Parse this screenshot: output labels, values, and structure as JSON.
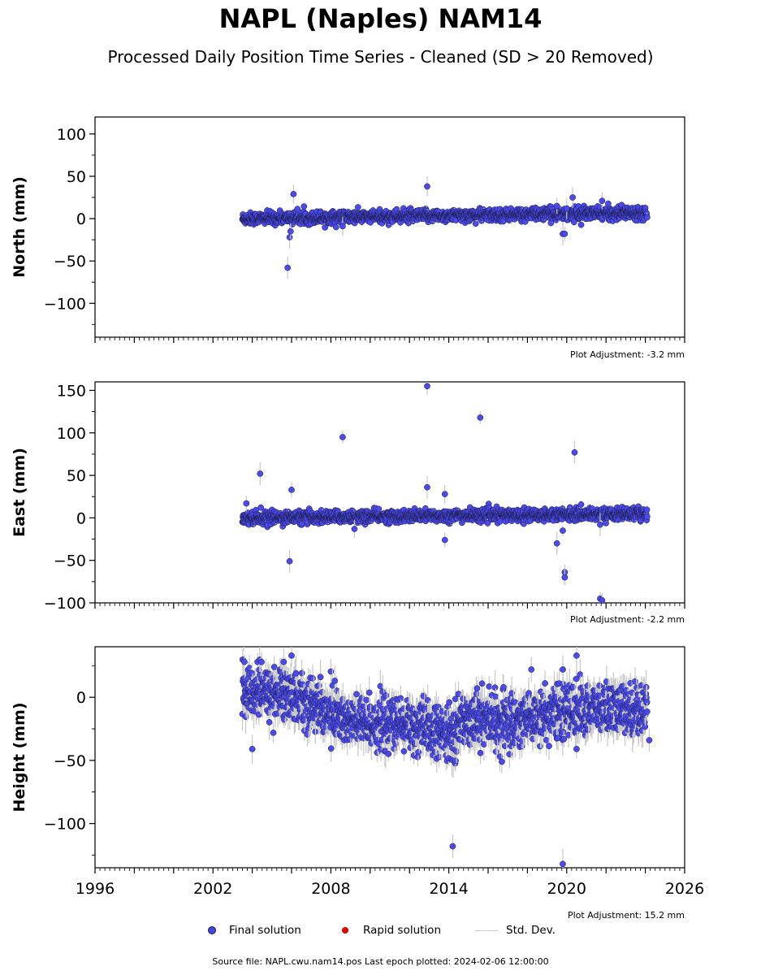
{
  "header": {
    "title": "NAPL (Naples) NAM14",
    "subtitle": "Processed Daily Position Time Series - Cleaned (SD > 20 Removed)"
  },
  "legend": {
    "final": "Final solution",
    "rapid": "Rapid solution",
    "std": "Std. Dev."
  },
  "footer": {
    "source": "Source file: NAPL.cwu.nam14.pos  Last epoch plotted: 2024-02-06 12:00:00"
  },
  "colors": {
    "final": "#4a4aee",
    "rapid": "#dd0000",
    "std": "#c8c8c8"
  },
  "chart_data": [
    {
      "type": "scatter",
      "ylabel": "North (mm)",
      "note": "Plot Adjustment: -3.2 mm",
      "xlim": [
        1996,
        2026
      ],
      "ylim": [
        -140,
        120
      ],
      "yticks": [
        -100,
        -50,
        0,
        50,
        100
      ],
      "trend": [
        [
          2003.5,
          0
        ],
        [
          2024.1,
          7
        ]
      ],
      "noise": 3.5,
      "series": [
        {
          "values": [
            [
              2005.8,
              -58
            ],
            [
              2005.9,
              -22
            ],
            [
              2005.95,
              -15
            ],
            [
              2006.1,
              29
            ],
            [
              2008.6,
              -9
            ],
            [
              2012.9,
              38
            ],
            [
              2019.8,
              -18
            ],
            [
              2019.9,
              -18
            ],
            [
              2020.3,
              25
            ],
            [
              2021.8,
              21
            ],
            [
              2019.5,
              15
            ],
            [
              2020.0,
              12
            ]
          ]
        }
      ]
    },
    {
      "type": "scatter",
      "ylabel": "East (mm)",
      "note": "Plot Adjustment: -2.2 mm",
      "xlim": [
        1996,
        2026
      ],
      "ylim": [
        -100,
        160
      ],
      "yticks": [
        -100,
        -50,
        0,
        50,
        100,
        150
      ],
      "trend": [
        [
          2003.5,
          0
        ],
        [
          2024.1,
          5
        ]
      ],
      "noise": 3.5,
      "series": [
        {
          "values": [
            [
              2003.7,
              17
            ],
            [
              2004.4,
              52
            ],
            [
              2005.9,
              -51
            ],
            [
              2006.0,
              33
            ],
            [
              2008.6,
              95
            ],
            [
              2009.2,
              -13
            ],
            [
              2012.9,
              155
            ],
            [
              2012.9,
              36
            ],
            [
              2013.8,
              28
            ],
            [
              2013.8,
              -26
            ],
            [
              2015.6,
              118
            ],
            [
              2019.5,
              -30
            ],
            [
              2019.8,
              -15
            ],
            [
              2019.9,
              -64
            ],
            [
              2019.9,
              -70
            ],
            [
              2020.4,
              77
            ],
            [
              2021.7,
              -95
            ],
            [
              2021.8,
              -97
            ],
            [
              2021.7,
              -8
            ]
          ]
        }
      ]
    },
    {
      "type": "scatter",
      "ylabel": "Height (mm)",
      "note": "Plot Adjustment: 15.2 mm",
      "xlim": [
        1996,
        2026
      ],
      "ylim": [
        -135,
        40
      ],
      "yticks": [
        -100,
        -50,
        0
      ],
      "xticks": [
        1996,
        2002,
        2008,
        2014,
        2020,
        2026
      ],
      "trend": [
        [
          2003.5,
          5
        ],
        [
          2006.0,
          2
        ],
        [
          2009.0,
          -20
        ],
        [
          2012.0,
          -22
        ],
        [
          2014.0,
          -30
        ],
        [
          2015.0,
          -15
        ],
        [
          2017.0,
          -20
        ],
        [
          2020.0,
          -10
        ],
        [
          2024.1,
          -10
        ]
      ],
      "noise": 10,
      "series": [
        {
          "values": [
            [
              2003.6,
              28
            ],
            [
              2004.0,
              -41
            ],
            [
              2005.6,
              28
            ],
            [
              2006.0,
              33
            ],
            [
              2008.2,
              13
            ],
            [
              2014.2,
              -118
            ],
            [
              2016.6,
              -47
            ],
            [
              2016.7,
              -51
            ],
            [
              2018.2,
              22
            ],
            [
              2019.8,
              -132
            ],
            [
              2019.8,
              22
            ],
            [
              2020.5,
              33
            ],
            [
              2020.5,
              -41
            ],
            [
              2024.2,
              -34
            ]
          ]
        }
      ]
    }
  ]
}
